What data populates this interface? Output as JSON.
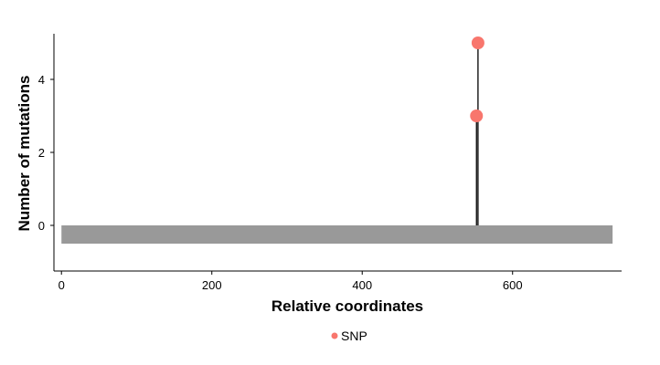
{
  "chart_data": {
    "type": "lollipop",
    "xlabel": "Relative coordinates",
    "ylabel": "Number of mutations",
    "xlim": [
      -10,
      745
    ],
    "ylim": [
      -1.25,
      5.25
    ],
    "x_ticks": [
      0,
      200,
      400,
      600
    ],
    "y_ticks": [
      0,
      2,
      4
    ],
    "gene_track": {
      "start": 0,
      "end": 733,
      "y_top": 0,
      "y_bottom": -0.5,
      "color": "#999999"
    },
    "series": [
      {
        "name": "SNP",
        "color": "#F8766D",
        "points": [
          {
            "x": 552,
            "y": 3
          },
          {
            "x": 554,
            "y": 5
          }
        ]
      }
    ],
    "legend": {
      "position": "bottom",
      "entries": [
        "SNP"
      ]
    },
    "grid": false
  }
}
